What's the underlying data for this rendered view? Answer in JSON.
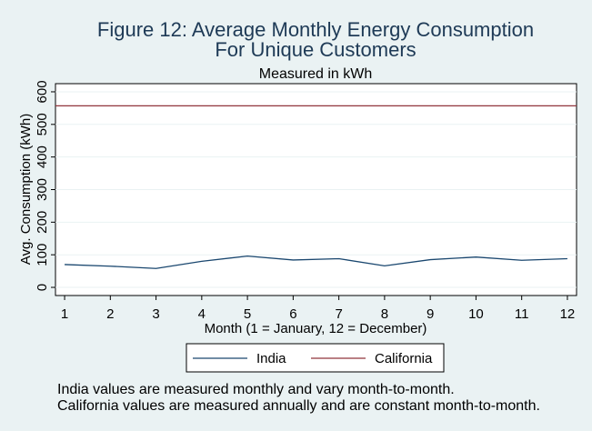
{
  "chart_data": {
    "type": "line",
    "title_line1": "Figure 12: Average Monthly Energy Consumption",
    "title_line2": "For Unique Customers",
    "subtitle": "Measured in kWh",
    "xlabel": "Month (1 = January, 12 = December)",
    "ylabel": "Avg. Consumption (kWh)",
    "x": [
      1,
      2,
      3,
      4,
      5,
      6,
      7,
      8,
      9,
      10,
      11,
      12
    ],
    "xlim": [
      0.8,
      12.2
    ],
    "ylim": [
      -25,
      625
    ],
    "yticks": [
      0,
      100,
      200,
      300,
      400,
      500,
      600
    ],
    "grid": true,
    "legend_position": "bottom",
    "series": [
      {
        "name": "India",
        "color": "#1a476f",
        "values": [
          70,
          65,
          58,
          80,
          96,
          84,
          88,
          66,
          85,
          93,
          83,
          88
        ]
      },
      {
        "name": "California",
        "color": "#90353b",
        "values": [
          557,
          557,
          557,
          557,
          557,
          557,
          557,
          557,
          557,
          557,
          557,
          557
        ]
      }
    ]
  },
  "notes": [
    "India values are measured monthly and vary month-to-month.",
    "California values are measured annually and are constant month-to-month."
  ]
}
